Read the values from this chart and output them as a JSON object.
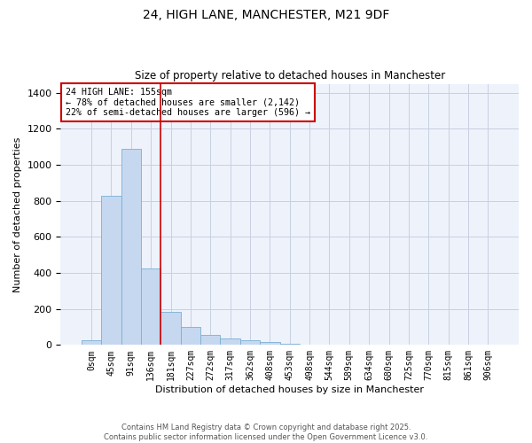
{
  "title": "24, HIGH LANE, MANCHESTER, M21 9DF",
  "subtitle": "Size of property relative to detached houses in Manchester",
  "xlabel": "Distribution of detached houses by size in Manchester",
  "ylabel": "Number of detached properties",
  "bar_color": "#c5d8f0",
  "bar_edge_color": "#7aafd4",
  "annotation_box_color": "#cc0000",
  "vline_color": "#cc0000",
  "annotation_text": "24 HIGH LANE: 155sqm\n← 78% of detached houses are smaller (2,142)\n22% of semi-detached houses are larger (596) →",
  "categories": [
    "0sqm",
    "45sqm",
    "91sqm",
    "136sqm",
    "181sqm",
    "227sqm",
    "272sqm",
    "317sqm",
    "362sqm",
    "408sqm",
    "453sqm",
    "498sqm",
    "544sqm",
    "589sqm",
    "634sqm",
    "680sqm",
    "725sqm",
    "770sqm",
    "815sqm",
    "861sqm",
    "906sqm"
  ],
  "values": [
    25,
    830,
    1090,
    425,
    185,
    100,
    55,
    35,
    25,
    15,
    5,
    0,
    0,
    0,
    0,
    0,
    0,
    0,
    0,
    0,
    0
  ],
  "ylim": [
    0,
    1450
  ],
  "yticks": [
    0,
    200,
    400,
    600,
    800,
    1000,
    1200,
    1400
  ],
  "footer_line1": "Contains HM Land Registry data © Crown copyright and database right 2025.",
  "footer_line2": "Contains public sector information licensed under the Open Government Licence v3.0.",
  "background_color": "#eef2fb",
  "grid_color": "#c8cfe0"
}
